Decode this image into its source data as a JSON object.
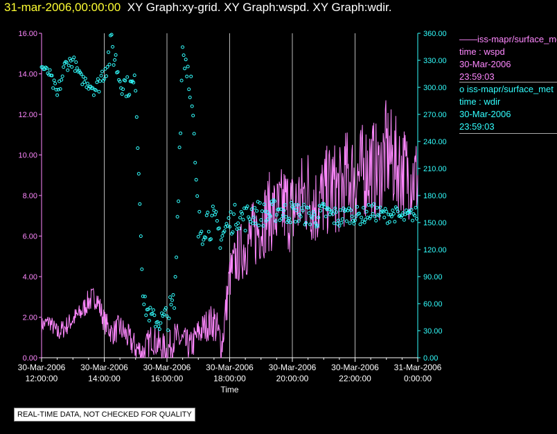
{
  "title": {
    "timestamp": "31-mar-2006,00:00:00",
    "graphs": "XY Graph:xy-grid.  XY Graph:wspd.  XY Graph:wdir."
  },
  "legend": [
    {
      "marker": "——",
      "series": "iss-mapr/surface_met",
      "line2": "time : wspd",
      "line3": "30-Mar-2006",
      "line4": "23:59:03"
    },
    {
      "marker": "o",
      "series": "iss-mapr/surface_met",
      "line2": "time : wdir",
      "line3": "30-Mar-2006",
      "line4": "23:59:03"
    }
  ],
  "notice": "REAL-TIME DATA, NOT CHECKED FOR QUALITY",
  "colors": {
    "wspd": "#ff88ff",
    "wdir": "#33ffff",
    "grid": "#bbbbbb",
    "axis": "#ffffff",
    "title_timestamp": "#ffff33"
  },
  "chart_data": {
    "type": "line",
    "xlabel": "Time",
    "x_range_hours": [
      12,
      24
    ],
    "x_ticks": [
      {
        "hour": 12,
        "date": "30-Mar-2006",
        "time": "12:00:00"
      },
      {
        "hour": 14,
        "date": "30-Mar-2006",
        "time": "14:00:00"
      },
      {
        "hour": 16,
        "date": "30-Mar-2006",
        "time": "16:00:00"
      },
      {
        "hour": 18,
        "date": "30-Mar-2006",
        "time": "18:00:00"
      },
      {
        "hour": 20,
        "date": "30-Mar-2006",
        "time": "20:00:00"
      },
      {
        "hour": 22,
        "date": "30-Mar-2006",
        "time": "22:00:00"
      },
      {
        "hour": 24,
        "date": "31-Mar-2006",
        "time": "0:00:00"
      }
    ],
    "y_left": {
      "ylim": [
        0,
        16
      ],
      "ticks": [
        "0.00",
        "2.00",
        "4.00",
        "6.00",
        "8.00",
        "10.00",
        "12.00",
        "14.00",
        "16.00"
      ]
    },
    "y_right": {
      "ylim": [
        0,
        360
      ],
      "ticks": [
        "0.00",
        "30.00",
        "60.00",
        "90.00",
        "120.00",
        "150.00",
        "180.00",
        "210.00",
        "240.00",
        "270.00",
        "300.00",
        "330.00",
        "360.00"
      ]
    },
    "series": [
      {
        "name": "wspd",
        "axis": "left",
        "style": "line",
        "x": [
          12,
          12.25,
          12.5,
          12.75,
          13,
          13.25,
          13.5,
          13.75,
          14,
          14.25,
          14.5,
          14.75,
          15,
          15.25,
          15.5,
          15.75,
          16,
          16.25,
          16.5,
          16.75,
          17,
          17.25,
          17.5,
          17.75,
          18,
          18.25,
          18.5,
          18.75,
          19,
          19.25,
          19.5,
          19.75,
          20,
          20.25,
          20.5,
          20.75,
          21,
          21.25,
          21.5,
          21.75,
          22,
          22.25,
          22.5,
          22.75,
          23,
          23.25,
          23.5,
          23.75,
          24
        ],
        "y": [
          1.6,
          1.8,
          1.2,
          1.5,
          1.9,
          2.2,
          2.8,
          3.0,
          1.8,
          1.2,
          1.5,
          1.0,
          0.5,
          0.2,
          1.0,
          0.6,
          0.3,
          1.0,
          0.8,
          0.5,
          1.2,
          1.6,
          1.8,
          0.6,
          4.0,
          5.0,
          5.5,
          6.0,
          6.5,
          7.2,
          7.0,
          7.5,
          7.2,
          7.8,
          8.2,
          7.5,
          8.0,
          8.5,
          8.2,
          9.0,
          8.8,
          9.2,
          9.5,
          9.0,
          10.2,
          9.6,
          9.3,
          9.0,
          8.8
        ],
        "swing": [
          0.4,
          0.4,
          0.5,
          0.5,
          0.5,
          0.5,
          0.6,
          0.6,
          0.6,
          0.6,
          0.7,
          0.7,
          0.7,
          0.8,
          0.7,
          0.8,
          0.8,
          0.8,
          0.8,
          0.8,
          0.8,
          0.8,
          1.0,
          1.0,
          1.2,
          1.4,
          1.6,
          1.8,
          1.8,
          2.0,
          2.0,
          2.2,
          2.2,
          2.2,
          2.4,
          2.2,
          2.2,
          2.4,
          2.2,
          2.4,
          2.4,
          2.4,
          2.6,
          2.4,
          2.6,
          2.4,
          2.4,
          2.2,
          2.2
        ]
      },
      {
        "name": "wdir",
        "axis": "right",
        "style": "circles",
        "x": [
          12,
          12.25,
          12.5,
          12.75,
          13,
          13.25,
          13.5,
          13.75,
          14,
          14.25,
          14.5,
          14.75,
          15,
          15.25,
          15.5,
          15.75,
          16,
          16.25,
          16.5,
          16.75,
          17,
          17.25,
          17.5,
          17.75,
          18,
          18.25,
          18.5,
          18.75,
          19,
          19.25,
          19.5,
          19.75,
          20,
          20.25,
          20.5,
          20.75,
          21,
          21.25,
          21.5,
          21.75,
          22,
          22.25,
          22.5,
          22.75,
          23,
          23.25,
          23.5,
          23.75,
          24
        ],
        "y": [
          323,
          315,
          290,
          325,
          330,
          310,
          305,
          298,
          320,
          345,
          310,
          300,
          305,
          60,
          45,
          40,
          45,
          60,
          345,
          310,
          140,
          155,
          148,
          135,
          150,
          158,
          155,
          162,
          160,
          158,
          165,
          160,
          162,
          160,
          158,
          155,
          162,
          158,
          155,
          160,
          158,
          157,
          162,
          160,
          158,
          160,
          155,
          158,
          160
        ],
        "scatter": [
          3,
          6,
          10,
          8,
          7,
          6,
          8,
          10,
          14,
          20,
          16,
          12,
          10,
          12,
          10,
          12,
          16,
          20,
          20,
          25,
          25,
          22,
          20,
          18,
          15,
          15,
          15,
          15,
          14,
          14,
          14,
          14,
          12,
          12,
          12,
          12,
          12,
          12,
          12,
          10,
          10,
          10,
          10,
          9,
          9,
          9,
          8,
          8,
          8
        ]
      }
    ]
  }
}
